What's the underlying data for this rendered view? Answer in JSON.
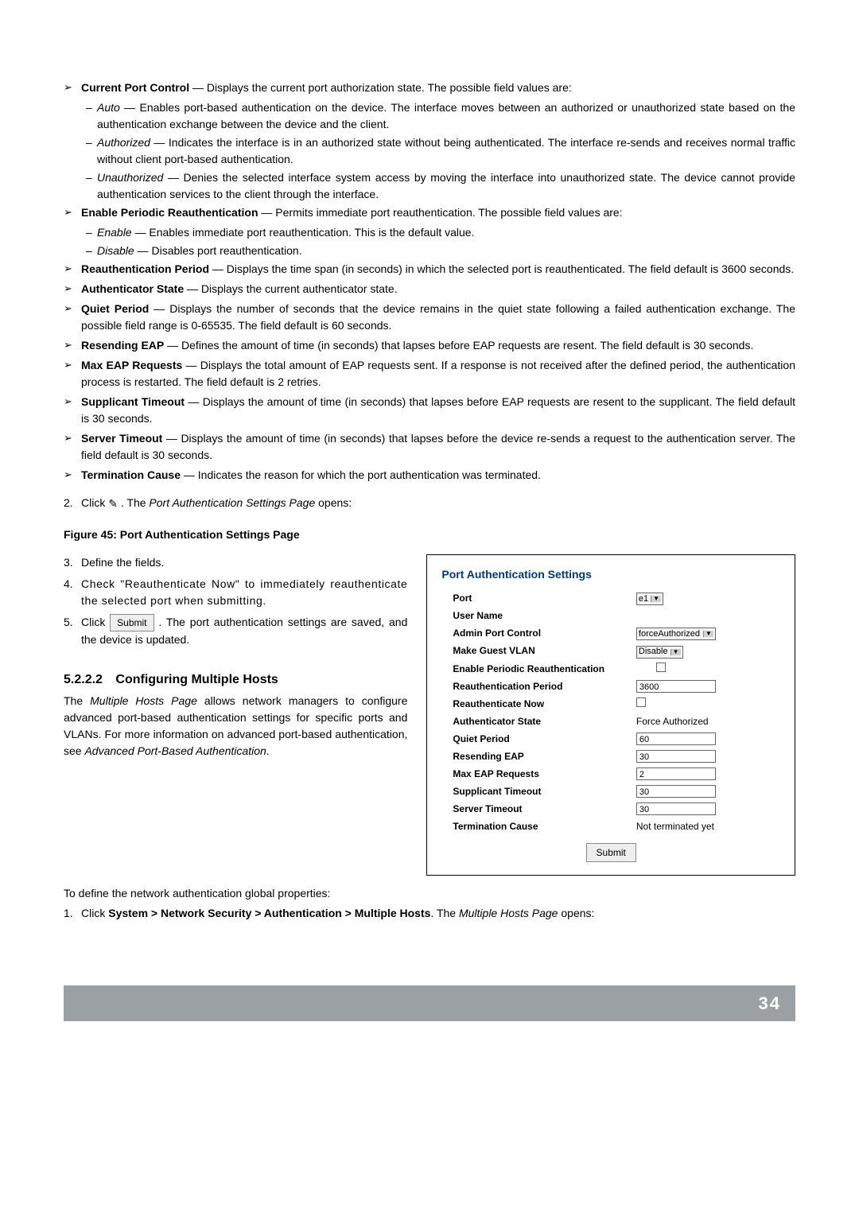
{
  "bullets": [
    {
      "label": "Current Port Control",
      "desc": " — Displays the current port authorization state. The possible field values are:",
      "subs": [
        {
          "em": "Auto",
          "text": " — Enables port-based authentication on the device. The interface moves between an authorized or unauthorized state based on the authentication exchange between the device and the client."
        },
        {
          "em": "Authorized",
          "text": " — Indicates the interface is in an authorized state without being authenticated. The interface re-sends and receives normal traffic without client port-based authentication."
        },
        {
          "em": "Unauthorized",
          "text": " — Denies the selected interface system access by moving the interface into unauthorized state. The device cannot provide authentication services to the client through the interface."
        }
      ]
    },
    {
      "label": "Enable Periodic Reauthentication",
      "desc": " — Permits immediate port reauthentication. The possible field values are:",
      "subs": [
        {
          "em": "Enable",
          "text": " — Enables immediate port reauthentication. This is the default value."
        },
        {
          "em": "Disable",
          "text": " — Disables port reauthentication."
        }
      ]
    },
    {
      "label": "Reauthentication Period",
      "desc": " — Displays the time span (in seconds) in which the selected port is reauthenticated. The field default is 3600 seconds.",
      "subs": []
    },
    {
      "label": "Authenticator State",
      "desc": " — Displays the current authenticator state.",
      "subs": []
    },
    {
      "label": "Quiet Period",
      "desc": " — Displays the number of seconds that the device remains in the quiet state following a failed authentication exchange. The possible field range is 0-65535. The field default is 60 seconds.",
      "subs": []
    },
    {
      "label": "Resending EAP",
      "desc": " — Defines the amount of time (in seconds) that lapses before EAP requests are resent. The field default is 30 seconds.",
      "subs": []
    },
    {
      "label": "Max EAP Requests",
      "desc": " — Displays the total amount of EAP requests sent. If a response is not received after the defined period, the authentication process is restarted. The field default is 2 retries.",
      "subs": []
    },
    {
      "label": "Supplicant Timeout",
      "desc": " — Displays the amount of time (in seconds) that lapses before EAP requests are resent to the supplicant. The field default is 30 seconds.",
      "subs": []
    },
    {
      "label": "Server Timeout",
      "desc": " — Displays the amount of time (in seconds) that lapses before the device re-sends a request to the authentication server. The field default is 30 seconds.",
      "subs": []
    },
    {
      "label": "Termination Cause",
      "desc": " — Indicates the reason for which the port authentication was terminated.",
      "subs": []
    }
  ],
  "step2_pre": "Click ",
  "step2_post": " . The ",
  "step2_em": "Port Authentication Settings Page",
  "step2_end": " opens:",
  "fig_caption": "Figure 45: Port Authentication Settings Page",
  "steps_left": {
    "s3": "Define the fields.",
    "s4": "Check \"Reauthenticate Now\" to immediately reauthenticate the selected port when submitting.",
    "s5a": "Click ",
    "s5b": ". The port authentication settings are saved, and the device is updated."
  },
  "section": {
    "num": "5.2.2.2",
    "title": "Configuring Multiple Hosts",
    "p1a": "The ",
    "p1em": "Multiple Hosts Page",
    "p1b": " allows network managers to configure advanced port-based authentication settings for specific ports and VLANs. For more information on advanced port-based authentication, see ",
    "p1em2": "Advanced Port-Based Authentication",
    "p1c": "."
  },
  "bottom": {
    "lead": "To define the network authentication global properties:",
    "s1a": "Click ",
    "s1b": "System > Network Security > Authentication > Multiple Hosts",
    "s1c": ". The ",
    "s1em": "Multiple Hosts Page",
    "s1d": " opens:"
  },
  "panel": {
    "title": "Port Authentication Settings",
    "rows": {
      "port_l": "Port",
      "port_v": "e1",
      "user_l": "User Name",
      "user_v": "",
      "admin_l": "Admin Port Control",
      "admin_v": "forceAuthorized",
      "guest_l": "Make Guest VLAN",
      "guest_v": "Disable",
      "periodic_l": "Enable Periodic Reauthentication",
      "reauthp_l": "Reauthentication Period",
      "reauthp_v": "3600",
      "reauthn_l": "Reauthenticate Now",
      "authst_l": "Authenticator State",
      "authst_v": "Force Authorized",
      "quiet_l": "Quiet Period",
      "quiet_v": "60",
      "reap_l": "Resending EAP",
      "reap_v": "30",
      "maxeap_l": "Max EAP Requests",
      "maxeap_v": "2",
      "supp_l": "Supplicant Timeout",
      "supp_v": "30",
      "serv_l": "Server Timeout",
      "serv_v": "30",
      "term_l": "Termination Cause",
      "term_v": "Not terminated yet"
    },
    "submit": "Submit"
  },
  "submit_label": "Submit",
  "page_num": "34"
}
